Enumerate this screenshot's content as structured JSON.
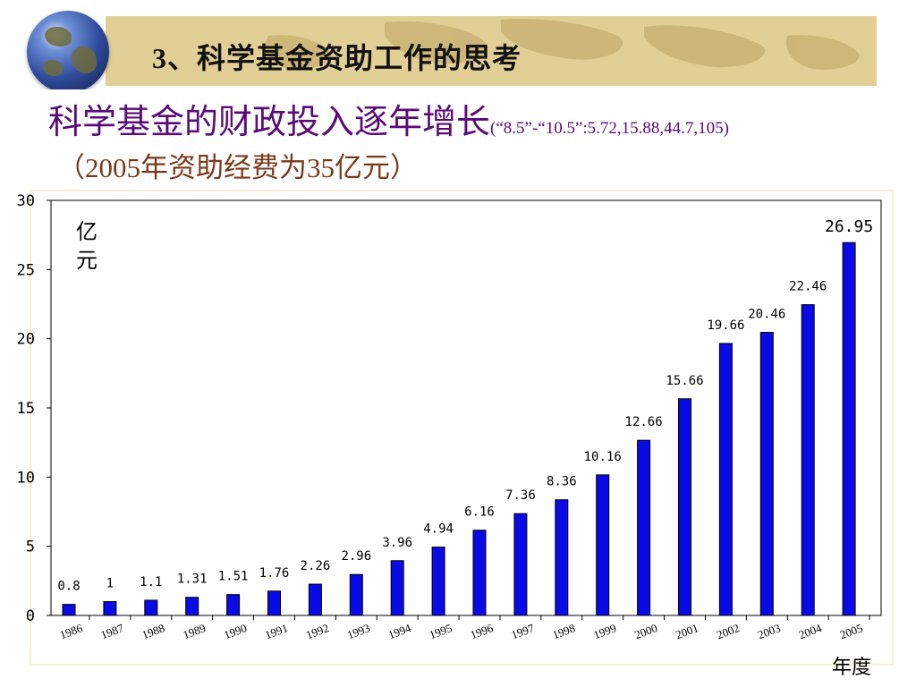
{
  "slide": {
    "section_title": "3、科学基金资助工作的思考",
    "headline": "科学基金的财政投入逐年增长",
    "headline_note": "(“8.5”-“10.5”:5.72,15.88,44.7,105)",
    "subline": "（2005年资助经费为35亿元）"
  },
  "colors": {
    "bar": "#0a0ae6",
    "banner": "#e2cf96",
    "headline": "#5a0a78",
    "subline": "#7a3a1a"
  },
  "chart_data": {
    "type": "bar",
    "ylabel": "亿元",
    "xlabel": "年度",
    "ylim": [
      0,
      30
    ],
    "yticks": [
      0,
      5,
      10,
      15,
      20,
      25,
      30
    ],
    "categories": [
      "1986",
      "1987",
      "1988",
      "1989",
      "1990",
      "1991",
      "1992",
      "1993",
      "1994",
      "1995",
      "1996",
      "1997",
      "1998",
      "1999",
      "2000",
      "2001",
      "2002",
      "2003",
      "2004",
      "2005"
    ],
    "values": [
      0.8,
      1,
      1.1,
      1.31,
      1.51,
      1.76,
      2.26,
      2.96,
      3.96,
      4.94,
      6.16,
      7.36,
      8.36,
      10.16,
      12.66,
      15.66,
      19.66,
      20.46,
      22.46,
      26.95
    ],
    "value_labels": [
      "0.8",
      "1",
      "1.1",
      "1.31",
      "1.51",
      "1.76",
      "2.26",
      "2.96",
      "3.96",
      "4.94",
      "6.16",
      "7.36",
      "8.36",
      "10.16",
      "12.66",
      "15.66",
      "19.66",
      "20.46",
      "22.46",
      "26.95"
    ],
    "grid": false
  }
}
